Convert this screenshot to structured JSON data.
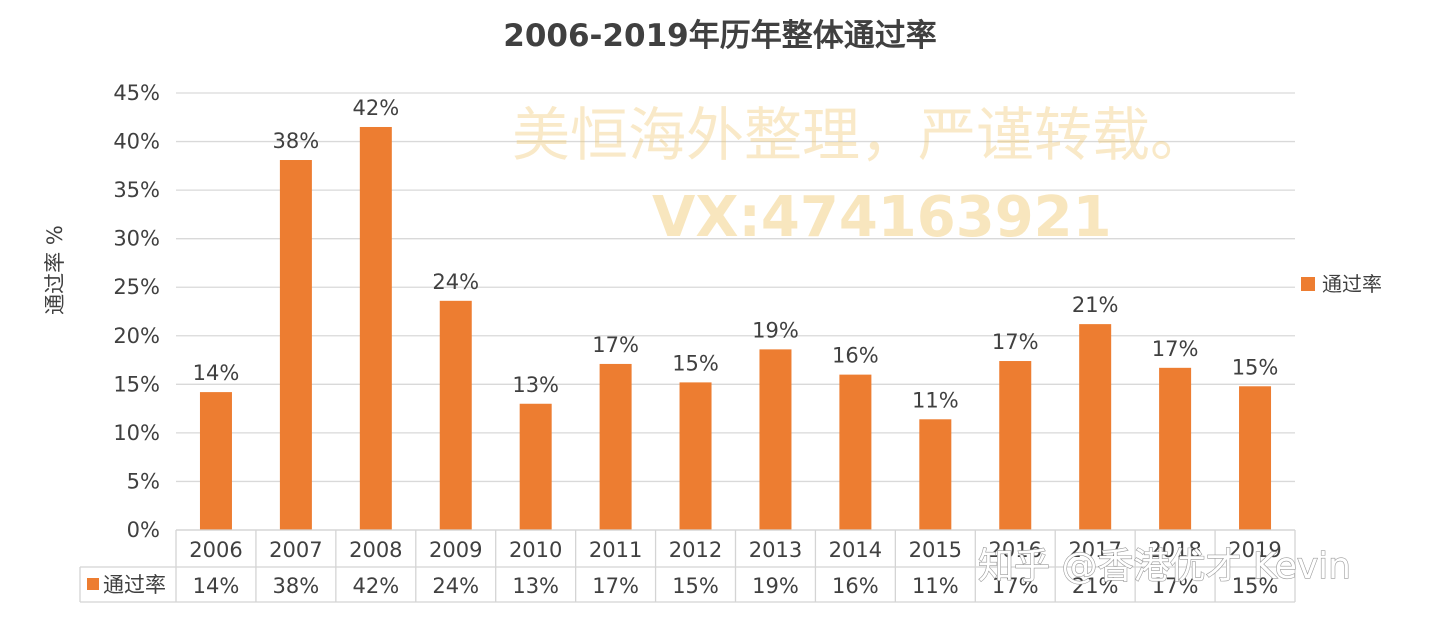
{
  "chart_data": {
    "type": "bar",
    "title": "2006-2019年历年整体通过率",
    "ylabel": "通过率 %",
    "xlabel": "",
    "ylim": [
      0,
      45
    ],
    "yticks": [
      "0%",
      "5%",
      "10%",
      "15%",
      "20%",
      "25%",
      "30%",
      "35%",
      "40%",
      "45%"
    ],
    "grid": true,
    "legend_position": "right",
    "categories": [
      "2006",
      "2007",
      "2008",
      "2009",
      "2010",
      "2011",
      "2012",
      "2013",
      "2014",
      "2015",
      "2016",
      "2017",
      "2018",
      "2019"
    ],
    "series": [
      {
        "name": "通过率",
        "color": "#ED7D31",
        "values": [
          14.2,
          38.1,
          41.5,
          23.6,
          13.0,
          17.1,
          15.2,
          18.6,
          16.0,
          11.4,
          17.4,
          21.2,
          16.7,
          14.8
        ],
        "labels": [
          "14%",
          "38%",
          "42%",
          "24%",
          "13%",
          "17%",
          "15%",
          "19%",
          "16%",
          "11%",
          "17%",
          "21%",
          "17%",
          "15%"
        ]
      }
    ],
    "data_table": true
  },
  "watermarks": {
    "line1": "美恒海外整理，严谨转载。",
    "line2": "VX:474163921",
    "credit": "知乎 @香港优才 Kevin"
  }
}
